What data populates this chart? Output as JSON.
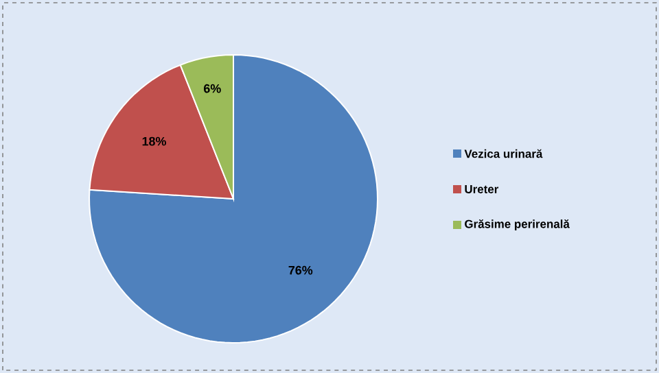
{
  "chart_data": {
    "type": "pie",
    "categories": [
      "Vezica urinară",
      "Ureter",
      "Grăsime perirenală"
    ],
    "values": [
      76,
      18,
      6
    ],
    "colors": [
      "#4f81bd",
      "#c0504d",
      "#9bbb59"
    ],
    "value_labels": [
      "76%",
      "18%",
      "6%"
    ],
    "legend": "right"
  }
}
